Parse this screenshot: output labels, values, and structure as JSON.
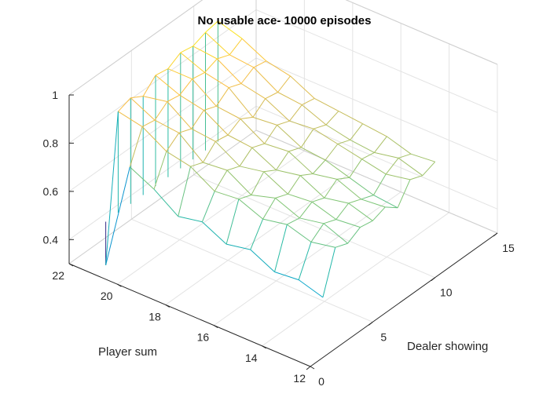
{
  "chart_data": {
    "type": "surface",
    "title": "No usable ace- 10000 episodes",
    "xlabel": "Dealer showing",
    "ylabel": "Player sum",
    "zlabel": "",
    "xlim": [
      0,
      15
    ],
    "ylim": [
      12,
      22
    ],
    "zlim": [
      0.3,
      1
    ],
    "xticks": [
      "0",
      "5",
      "10",
      "15"
    ],
    "yticks": [
      "12",
      "14",
      "16",
      "18",
      "20",
      "22"
    ],
    "zticks": [
      "0.4",
      "0.6",
      "0.8",
      "1"
    ],
    "grid": true,
    "x": [
      1,
      2,
      3,
      4,
      5,
      6,
      7,
      8,
      9,
      10
    ],
    "y": [
      12,
      13,
      14,
      15,
      16,
      17,
      18,
      19,
      20,
      21
    ],
    "z": [
      [
        0.55,
        0.72,
        0.7,
        0.73,
        0.72,
        0.74,
        0.7,
        0.78,
        0.76,
        0.78
      ],
      [
        0.58,
        0.7,
        0.74,
        0.72,
        0.75,
        0.73,
        0.71,
        0.76,
        0.79,
        0.77
      ],
      [
        0.57,
        0.73,
        0.72,
        0.75,
        0.73,
        0.77,
        0.74,
        0.78,
        0.77,
        0.8
      ],
      [
        0.62,
        0.71,
        0.76,
        0.74,
        0.78,
        0.75,
        0.77,
        0.8,
        0.78,
        0.81
      ],
      [
        0.6,
        0.75,
        0.73,
        0.79,
        0.76,
        0.8,
        0.78,
        0.82,
        0.8,
        0.82
      ],
      [
        0.65,
        0.74,
        0.79,
        0.77,
        0.81,
        0.79,
        0.83,
        0.81,
        0.84,
        0.83
      ],
      [
        0.63,
        0.8,
        0.78,
        0.83,
        0.82,
        0.85,
        0.82,
        0.86,
        0.85,
        0.88
      ],
      [
        0.7,
        0.82,
        0.86,
        0.84,
        0.88,
        0.86,
        0.9,
        0.88,
        0.91,
        0.9
      ],
      [
        0.75,
        0.88,
        0.87,
        0.91,
        0.9,
        0.93,
        0.92,
        0.94,
        0.92,
        0.95
      ],
      [
        0.3,
        0.9,
        0.92,
        0.89,
        0.94,
        0.93,
        0.96,
        0.95,
        0.97,
        0.98
      ]
    ]
  }
}
